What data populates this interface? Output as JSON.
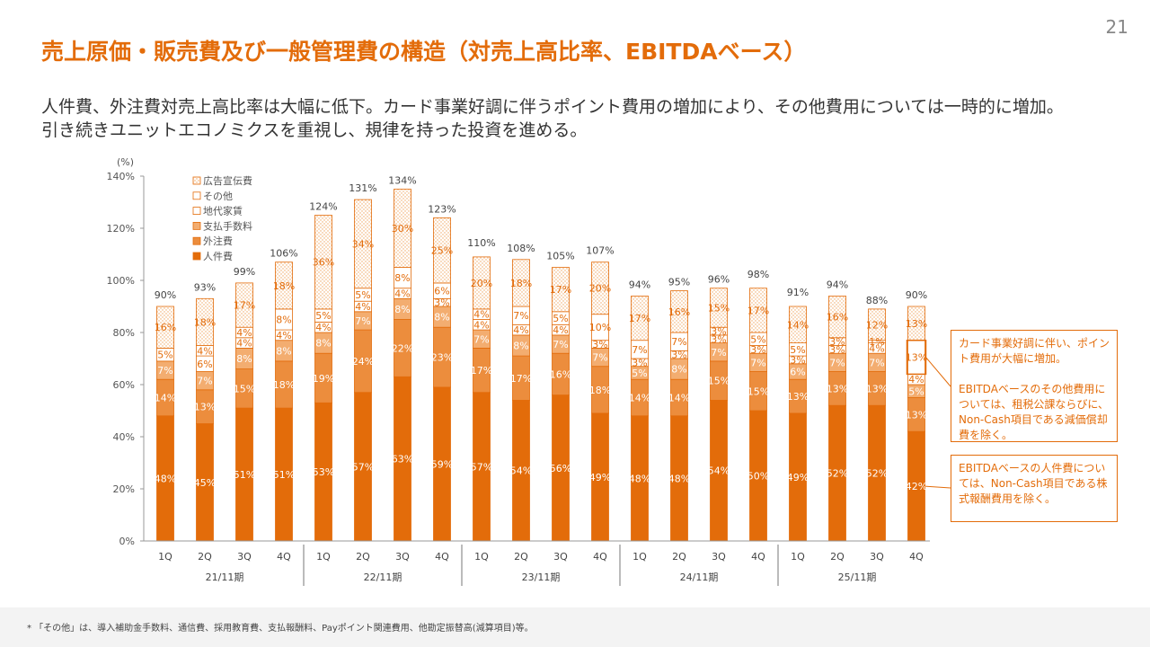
{
  "page_number": "21",
  "title": "売上原価・販売費及び一般管理費の構造（対売上高比率、EBITDAベース）",
  "subtitle_lines": [
    "人件費、外注費対売上高比率は大幅に低下。カード事業好調に伴うポイント費用の増加により、その他費用については一時的に増加。",
    "引き続きユニットエコノミクスを重視し、規律を持った投資を進める。"
  ],
  "notes": {
    "note1": {
      "line1": "カード事業好調に伴い、ポイント費用が大幅に増加。",
      "line2": "EBITDAベースのその他費用については、租税公課ならびに、Non-Cash項目である減価償却費を除く。"
    },
    "note2": "EBITDAベースの人件費については、Non-Cash項目である株式報酬費用を除く。"
  },
  "footnote": "* 「その他」は、導入補助金手数料、通信費、採用教育費、支払報酬料、Payポイント関連費用、他勘定振替高(減算項目)等。",
  "colors": {
    "accent": "#e36c0a",
    "labor": "#e36c0a",
    "outsourcing": "#ec8d3d",
    "payment_fees": "#f3ad70",
    "rent": "#ffffff",
    "other": "#ffffff",
    "advertising": "#fdf0e6"
  },
  "chart_data": {
    "type": "bar",
    "stacked": true,
    "unit_label": "(%)",
    "ylim": [
      0,
      140
    ],
    "yticks": [
      "0%",
      "20%",
      "40%",
      "60%",
      "80%",
      "100%",
      "120%",
      "140%"
    ],
    "ytick_values": [
      0,
      20,
      40,
      60,
      80,
      100,
      120,
      140
    ],
    "categories": [
      "1Q",
      "2Q",
      "3Q",
      "4Q",
      "1Q",
      "2Q",
      "3Q",
      "4Q",
      "1Q",
      "2Q",
      "3Q",
      "4Q",
      "1Q",
      "2Q",
      "3Q",
      "4Q",
      "1Q",
      "2Q",
      "3Q",
      "4Q"
    ],
    "groups": [
      {
        "label": "21/11期",
        "start": 0,
        "count": 4
      },
      {
        "label": "22/11期",
        "start": 4,
        "count": 4
      },
      {
        "label": "23/11期",
        "start": 8,
        "count": 4
      },
      {
        "label": "24/11期",
        "start": 12,
        "count": 4
      },
      {
        "label": "25/11期",
        "start": 16,
        "count": 4
      }
    ],
    "totals": [
      90,
      93,
      99,
      106,
      124,
      131,
      134,
      123,
      110,
      108,
      105,
      107,
      94,
      95,
      96,
      98,
      91,
      94,
      88,
      90
    ],
    "total_labels": [
      "90%",
      "93%",
      "99%",
      "106%",
      "124%",
      "131%",
      "134%",
      "123%",
      "110%",
      "108%",
      "105%",
      "107%",
      "94%",
      "95%",
      "96%",
      "98%",
      "91%",
      "94%",
      "88%",
      "90%"
    ],
    "legend_order": [
      "広告宣伝費",
      "その他",
      "地代家賃",
      "支払手数料",
      "外注費",
      "人件費"
    ],
    "series": [
      {
        "name": "人件費",
        "key": "labor",
        "values": [
          48,
          45,
          51,
          51,
          53,
          57,
          63,
          59,
          57,
          54,
          56,
          49,
          48,
          48,
          54,
          50,
          49,
          52,
          52,
          42
        ],
        "labels": [
          "48%",
          "45%",
          "51%",
          "51%",
          "53%",
          "57%",
          "63%",
          "59%",
          "57%",
          "54%",
          "56%",
          "49%",
          "48%",
          "48%",
          "54%",
          "50%",
          "49%",
          "52%",
          "52%",
          "42%"
        ]
      },
      {
        "name": "外注費",
        "key": "outsourcing",
        "values": [
          14,
          13,
          15,
          18,
          19,
          24,
          22,
          23,
          17,
          17,
          16,
          18,
          14,
          14,
          15,
          15,
          13,
          13,
          13,
          13
        ],
        "labels": [
          "14%",
          "13%",
          "15%",
          "18%",
          "19%",
          "24%",
          "22%",
          "23%",
          "17%",
          "17%",
          "16%",
          "18%",
          "14%",
          "14%",
          "15%",
          "15%",
          "13%",
          "13%",
          "13%",
          "13%"
        ]
      },
      {
        "name": "支払手数料",
        "key": "payment_fees",
        "values": [
          7,
          7,
          8,
          8,
          8,
          7,
          8,
          8,
          7,
          8,
          7,
          7,
          5,
          8,
          7,
          7,
          6,
          7,
          7,
          5
        ],
        "labels": [
          "7%",
          "7%",
          "8%",
          "8%",
          "8%",
          "7%",
          "8%",
          "8%",
          "7%",
          "8%",
          "7%",
          "7%",
          "5%",
          "8%",
          "7%",
          "7%",
          "6%",
          "7%",
          "7%",
          "5%"
        ]
      },
      {
        "name": "地代家賃",
        "key": "rent",
        "values": [
          5,
          6,
          4,
          4,
          4,
          4,
          4,
          3,
          4,
          4,
          4,
          3,
          3,
          3,
          3,
          3,
          3,
          3,
          4,
          4
        ],
        "labels": [
          "5%",
          "6%",
          "4%",
          "4%",
          "4%",
          "4%",
          "4%",
          "3%",
          "4%",
          "4%",
          "4%",
          "3%",
          "3%",
          "3%",
          "3%",
          "3%",
          "3%",
          "3%",
          "4%",
          "4%"
        ]
      },
      {
        "name": "その他",
        "key": "other",
        "values": [
          0,
          4,
          4,
          8,
          5,
          5,
          8,
          6,
          4,
          7,
          5,
          10,
          7,
          7,
          3,
          5,
          5,
          3,
          1,
          13
        ],
        "labels": [
          "",
          "4%",
          "4%",
          "8%",
          "5%",
          "5%",
          "8%",
          "6%",
          "4%",
          "7%",
          "5%",
          "10%",
          "7%",
          "7%",
          "3%",
          "5%",
          "5%",
          "3%",
          "1%",
          "13%"
        ]
      },
      {
        "name": "広告宣伝費",
        "key": "advertising",
        "values": [
          16,
          18,
          17,
          18,
          36,
          34,
          30,
          25,
          20,
          18,
          17,
          20,
          17,
          16,
          15,
          17,
          14,
          16,
          12,
          13
        ],
        "labels": [
          "16%",
          "18%",
          "17%",
          "18%",
          "36%",
          "34%",
          "30%",
          "25%",
          "20%",
          "18%",
          "17%",
          "20%",
          "17%",
          "16%",
          "15%",
          "17%",
          "14%",
          "16%",
          "12%",
          "13%"
        ]
      }
    ]
  }
}
